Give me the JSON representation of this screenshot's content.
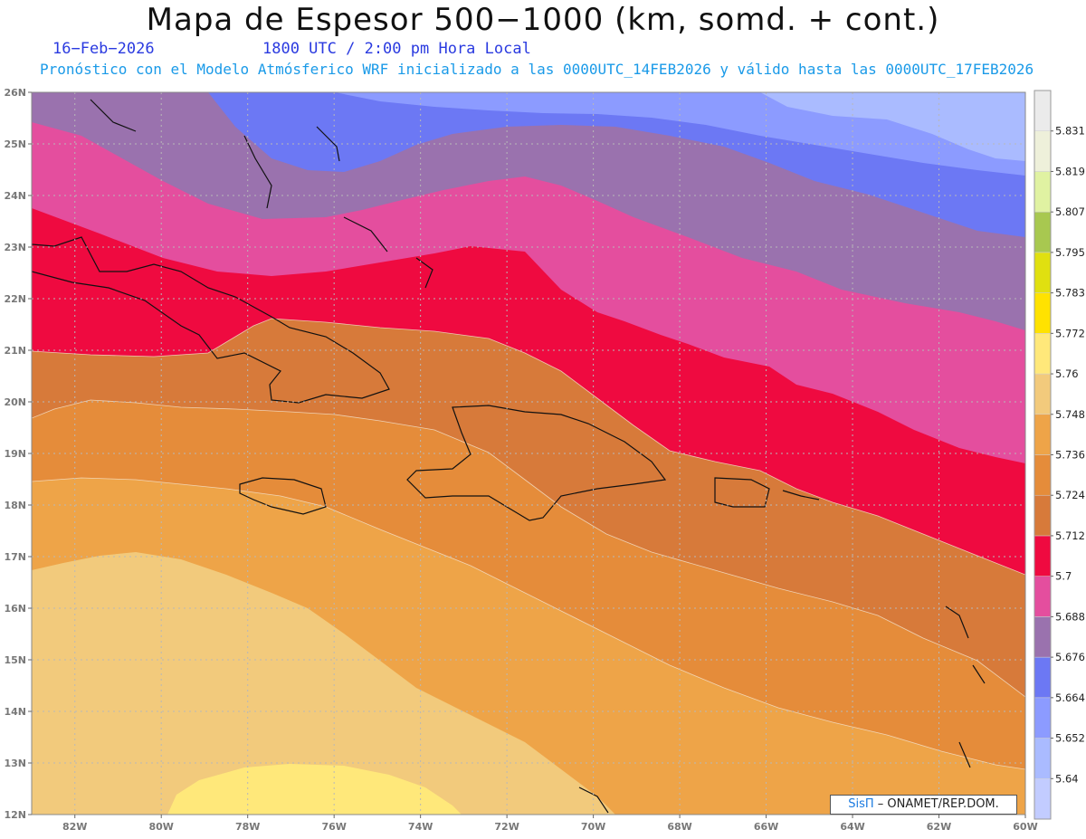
{
  "header": {
    "title": "Mapa de Espesor 500−1000 (km, somd. + cont.)",
    "date": "16−Feb−2026",
    "time": "1800 UTC / 2:00 pm Hora Local",
    "subtitle": "Pronóstico con el Modelo Atmósferico WRF inicializado a las 0000UTC_14FEB2026 y válido hasta las  0000UTC_17FEB2026"
  },
  "map": {
    "lat_range": [
      12,
      26
    ],
    "lon_range": [
      -83,
      -60
    ],
    "lat_labels": [
      "26N",
      "25N",
      "24N",
      "23N",
      "22N",
      "21N",
      "20N",
      "19N",
      "18N",
      "17N",
      "16N",
      "15N",
      "14N",
      "13N",
      "12N"
    ],
    "lon_labels": [
      "82W",
      "80W",
      "78W",
      "76W",
      "74W",
      "72W",
      "70W",
      "68W",
      "66W",
      "64W",
      "62W",
      "60W"
    ],
    "gridlines": "dotted"
  },
  "legend": {
    "levels": [
      "5.64",
      "5.652",
      "5.664",
      "5.676",
      "5.688",
      "5.7",
      "5.712",
      "5.724",
      "5.736",
      "5.748",
      "5.76",
      "5.772",
      "5.783",
      "5.795",
      "5.807",
      "5.819",
      "5.831"
    ],
    "colors": [
      "#c2ccff",
      "#aabbff",
      "#8c9bff",
      "#6c78f4",
      "#9a72ae",
      "#e44e9e",
      "#ef0a40",
      "#d77a3a",
      "#e58c3a",
      "#eea448",
      "#f2ca7c",
      "#ffe87a",
      "#ffe200",
      "#e0e010",
      "#a8c850",
      "#e0f2a2",
      "#eef0da",
      "#ebebeb"
    ]
  },
  "credit": {
    "brand": "SisΠ",
    "text": "– ONAMET/REP.DOM."
  }
}
